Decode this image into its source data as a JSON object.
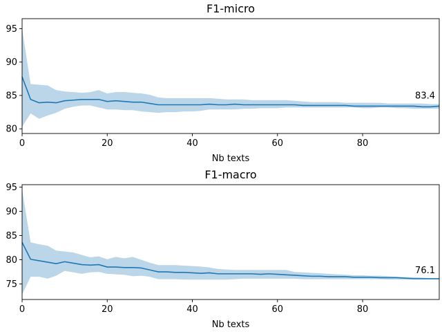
{
  "chart_data": [
    {
      "type": "line",
      "title": "F1-micro",
      "xlabel": "Nb texts",
      "ylabel": "",
      "xlim": [
        0,
        98
      ],
      "ylim": [
        79.3,
        96.5
      ],
      "xticks": [
        0,
        20,
        40,
        60,
        80
      ],
      "yticks": [
        80,
        85,
        90,
        95
      ],
      "grid": false,
      "color": "#1f77b4",
      "band_color": "#1f77b4",
      "end_label": "83.4",
      "x": [
        0,
        2,
        4,
        6,
        8,
        10,
        12,
        14,
        16,
        18,
        20,
        22,
        24,
        26,
        28,
        30,
        32,
        34,
        36,
        38,
        40,
        42,
        44,
        46,
        48,
        50,
        52,
        54,
        56,
        58,
        60,
        62,
        64,
        66,
        68,
        70,
        72,
        74,
        76,
        78,
        80,
        82,
        84,
        86,
        88,
        90,
        92,
        94,
        96,
        98
      ],
      "mean": [
        87.8,
        84.4,
        83.9,
        84.0,
        83.9,
        84.2,
        84.3,
        84.4,
        84.4,
        84.4,
        84.1,
        84.2,
        84.1,
        84.0,
        84.0,
        83.8,
        83.6,
        83.6,
        83.6,
        83.6,
        83.6,
        83.6,
        83.7,
        83.6,
        83.6,
        83.7,
        83.6,
        83.6,
        83.6,
        83.6,
        83.6,
        83.6,
        83.6,
        83.5,
        83.5,
        83.5,
        83.5,
        83.5,
        83.5,
        83.4,
        83.4,
        83.4,
        83.4,
        83.4,
        83.4,
        83.4,
        83.4,
        83.3,
        83.3,
        83.4
      ],
      "upper": [
        95.0,
        86.7,
        86.6,
        86.5,
        85.8,
        85.6,
        85.5,
        85.4,
        85.5,
        85.8,
        85.3,
        85.5,
        85.5,
        85.4,
        85.3,
        85.1,
        84.7,
        84.6,
        84.6,
        84.6,
        84.6,
        84.6,
        84.6,
        84.5,
        84.4,
        84.4,
        84.4,
        84.3,
        84.3,
        84.3,
        84.3,
        84.3,
        84.2,
        84.1,
        84.0,
        84.0,
        84.0,
        84.0,
        83.9,
        83.9,
        83.9,
        83.9,
        83.9,
        83.8,
        83.8,
        83.8,
        83.8,
        83.8,
        83.7,
        83.7
      ],
      "lower": [
        80.3,
        82.3,
        81.5,
        82.0,
        82.4,
        83.0,
        83.3,
        83.5,
        83.5,
        83.2,
        82.9,
        82.9,
        82.8,
        82.8,
        82.6,
        82.5,
        82.4,
        82.5,
        82.5,
        82.6,
        82.6,
        82.7,
        82.9,
        82.9,
        82.9,
        82.9,
        83.0,
        83.0,
        83.1,
        83.1,
        83.1,
        83.2,
        83.2,
        83.2,
        83.2,
        83.2,
        83.2,
        83.2,
        83.2,
        83.2,
        83.1,
        83.1,
        83.2,
        83.2,
        83.1,
        83.1,
        83.0,
        83.0,
        83.0,
        83.0
      ]
    },
    {
      "type": "line",
      "title": "F1-macro",
      "xlabel": "Nb texts",
      "ylabel": "",
      "xlim": [
        0,
        98
      ],
      "ylim": [
        71.8,
        95.5
      ],
      "xticks": [
        0,
        20,
        40,
        60,
        80
      ],
      "yticks": [
        75,
        80,
        85,
        90,
        95
      ],
      "grid": false,
      "color": "#1f77b4",
      "band_color": "#1f77b4",
      "end_label": "76.1",
      "x": [
        0,
        2,
        4,
        6,
        8,
        10,
        12,
        14,
        16,
        18,
        20,
        22,
        24,
        26,
        28,
        30,
        32,
        34,
        36,
        38,
        40,
        42,
        44,
        46,
        48,
        50,
        52,
        54,
        56,
        58,
        60,
        62,
        64,
        66,
        68,
        70,
        72,
        74,
        76,
        78,
        80,
        82,
        84,
        86,
        88,
        90,
        92,
        94,
        96,
        98
      ],
      "mean": [
        83.6,
        80.1,
        79.8,
        79.5,
        79.2,
        79.6,
        79.3,
        79.0,
        78.9,
        79.0,
        78.5,
        78.5,
        78.4,
        78.4,
        78.3,
        77.9,
        77.5,
        77.5,
        77.4,
        77.4,
        77.3,
        77.2,
        77.3,
        77.1,
        77.1,
        77.1,
        77.1,
        77.1,
        77.0,
        77.1,
        77.0,
        76.9,
        76.8,
        76.7,
        76.6,
        76.6,
        76.5,
        76.5,
        76.5,
        76.4,
        76.4,
        76.4,
        76.3,
        76.3,
        76.3,
        76.2,
        76.1,
        76.1,
        76.1,
        76.1
      ],
      "upper": [
        94.5,
        83.6,
        83.2,
        82.9,
        81.9,
        81.7,
        81.5,
        81.0,
        80.5,
        80.7,
        80.1,
        80.6,
        80.3,
        80.6,
        80.0,
        79.4,
        78.9,
        78.9,
        78.9,
        78.8,
        78.7,
        78.6,
        78.4,
        78.1,
        78.0,
        77.9,
        77.9,
        77.9,
        77.9,
        77.9,
        77.9,
        77.9,
        77.5,
        77.4,
        77.3,
        77.2,
        77.1,
        77.0,
        76.9,
        76.8,
        76.8,
        76.7,
        76.7,
        76.6,
        76.5,
        76.4,
        76.4,
        76.3,
        76.2,
        76.1
      ],
      "lower": [
        72.8,
        76.5,
        76.5,
        76.1,
        76.7,
        77.7,
        77.4,
        77.1,
        77.4,
        77.5,
        77.1,
        77.0,
        76.9,
        76.6,
        76.7,
        76.5,
        76.0,
        76.0,
        76.0,
        75.9,
        75.9,
        75.9,
        75.9,
        75.9,
        75.9,
        76.0,
        76.1,
        76.1,
        76.1,
        76.1,
        76.1,
        76.1,
        76.1,
        76.0,
        76.0,
        76.0,
        76.0,
        76.0,
        76.0,
        76.0,
        76.0,
        76.0,
        76.0,
        75.9,
        75.9,
        75.9,
        75.9,
        75.9,
        75.9,
        75.9
      ]
    }
  ]
}
